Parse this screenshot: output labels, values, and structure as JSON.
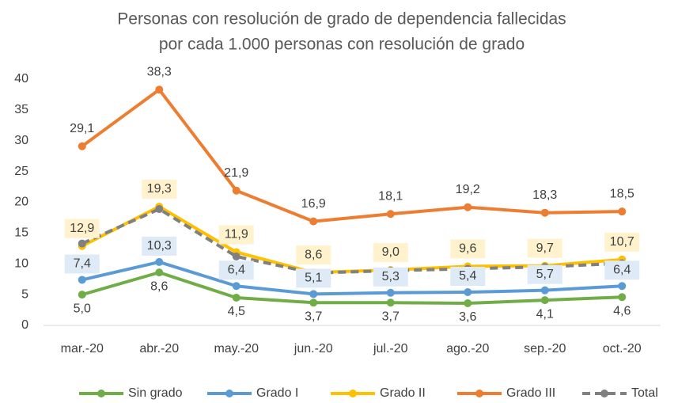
{
  "chart_data": {
    "type": "line",
    "title": "Personas con resolución de grado de dependencia fallecidas",
    "subtitle": "por cada 1.000 personas con resolución de grado",
    "categories": [
      "mar.-20",
      "abr.-20",
      "may.-20",
      "jun.-20",
      "jul.-20",
      "ago.-20",
      "sep.-20",
      "oct.-20"
    ],
    "ylim": [
      0,
      40
    ],
    "yticks": [
      0,
      5,
      10,
      15,
      20,
      25,
      30,
      35,
      40
    ],
    "grid": false,
    "legend": "bottom",
    "series": [
      {
        "name": "Sin grado",
        "color": "#70ad47",
        "values": [
          5.0,
          8.6,
          4.5,
          3.7,
          3.7,
          3.6,
          4.1,
          4.6
        ],
        "value_labels": [
          "5,0",
          "8,6",
          "4,5",
          "3,7",
          "3,7",
          "3,6",
          "4,1",
          "4,6"
        ]
      },
      {
        "name": "Grado I",
        "color": "#5b9bd5",
        "values": [
          7.4,
          10.3,
          6.4,
          5.1,
          5.3,
          5.4,
          5.7,
          6.4
        ],
        "value_labels": [
          "7,4",
          "10,3",
          "6,4",
          "5,1",
          "5,3",
          "5,4",
          "5,7",
          "6,4"
        ]
      },
      {
        "name": "Grado II",
        "color": "#ffc000",
        "values": [
          12.9,
          19.3,
          11.9,
          8.6,
          9.0,
          9.6,
          9.7,
          10.7
        ],
        "value_labels": [
          "12,9",
          "19,3",
          "11,9",
          "8,6",
          "9,0",
          "9,6",
          "9,7",
          "10,7"
        ]
      },
      {
        "name": "Grado III",
        "color": "#ed7d31",
        "values": [
          29.1,
          38.3,
          21.9,
          16.9,
          18.1,
          19.2,
          18.3,
          18.5
        ],
        "value_labels": [
          "29,1",
          "38,3",
          "21,9",
          "16,9",
          "18,1",
          "19,2",
          "18,3",
          "18,5"
        ]
      },
      {
        "name": "Total",
        "color": "#808080",
        "dashed": true,
        "values": [
          13.3,
          18.9,
          11.2,
          8.5,
          8.9,
          9.2,
          9.5,
          10.1
        ]
      }
    ]
  }
}
